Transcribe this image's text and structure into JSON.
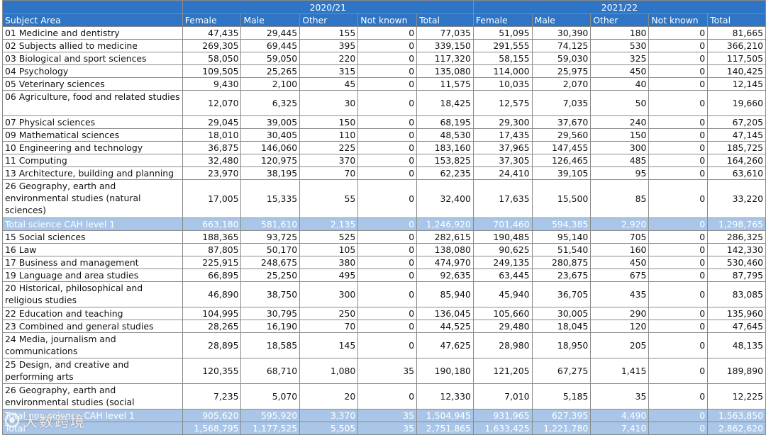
{
  "headers": {
    "subject_area": "Subject Area",
    "years": [
      "2020/21",
      "2021/22"
    ],
    "columns": [
      "Female",
      "Male",
      "Other",
      "Not known",
      "Total"
    ]
  },
  "rows": [
    {
      "subject": "01 Medicine and dentistry",
      "y1": [
        "47,435",
        "29,445",
        "155",
        "0",
        "77,035"
      ],
      "y2": [
        "51,095",
        "30,390",
        "180",
        "0",
        "81,665"
      ]
    },
    {
      "subject": "02 Subjects allied to medicine",
      "y1": [
        "269,305",
        "69,445",
        "395",
        "0",
        "339,150"
      ],
      "y2": [
        "291,555",
        "74,125",
        "530",
        "0",
        "366,210"
      ]
    },
    {
      "subject": "03 Biological and sport sciences",
      "y1": [
        "58,050",
        "59,050",
        "220",
        "0",
        "117,320"
      ],
      "y2": [
        "58,155",
        "59,030",
        "325",
        "0",
        "117,505"
      ]
    },
    {
      "subject": "04 Psychology",
      "y1": [
        "109,505",
        "25,265",
        "315",
        "0",
        "135,080"
      ],
      "y2": [
        "114,000",
        "25,975",
        "450",
        "0",
        "140,425"
      ]
    },
    {
      "subject": "05 Veterinary sciences",
      "y1": [
        "9,430",
        "2,100",
        "45",
        "0",
        "11,575"
      ],
      "y2": [
        "10,035",
        "2,070",
        "40",
        "0",
        "12,145"
      ]
    },
    {
      "subject": "06 Agriculture, food and related studies",
      "y1": [
        "12,070",
        "6,325",
        "30",
        "0",
        "18,425"
      ],
      "y2": [
        "12,575",
        "7,035",
        "50",
        "0",
        "19,660"
      ]
    },
    {
      "subject": "07 Physical sciences",
      "y1": [
        "29,045",
        "39,005",
        "150",
        "0",
        "68,195"
      ],
      "y2": [
        "29,300",
        "37,670",
        "240",
        "0",
        "67,205"
      ]
    },
    {
      "subject": "09 Mathematical sciences",
      "y1": [
        "18,010",
        "30,405",
        "110",
        "0",
        "48,530"
      ],
      "y2": [
        "17,435",
        "29,560",
        "150",
        "0",
        "47,145"
      ]
    },
    {
      "subject": "10 Engineering and technology",
      "y1": [
        "36,875",
        "146,060",
        "225",
        "0",
        "183,160"
      ],
      "y2": [
        "37,965",
        "147,455",
        "300",
        "0",
        "185,725"
      ]
    },
    {
      "subject": "11 Computing",
      "y1": [
        "32,480",
        "120,975",
        "370",
        "0",
        "153,825"
      ],
      "y2": [
        "37,305",
        "126,465",
        "485",
        "0",
        "164,260"
      ]
    },
    {
      "subject": "13 Architecture, building and planning",
      "y1": [
        "23,970",
        "38,195",
        "70",
        "0",
        "62,235"
      ],
      "y2": [
        "24,410",
        "39,105",
        "95",
        "0",
        "63,610"
      ]
    },
    {
      "subject": "26 Geography, earth and environmental studies (natural sciences)",
      "y1": [
        "17,005",
        "15,335",
        "55",
        "0",
        "32,400"
      ],
      "y2": [
        "17,635",
        "15,500",
        "85",
        "0",
        "33,220"
      ]
    },
    {
      "subject": "Total science CAH level 1",
      "total": true,
      "y1": [
        "663,180",
        "581,610",
        "2,135",
        "0",
        "1,246,920"
      ],
      "y2": [
        "701,460",
        "594,385",
        "2,920",
        "0",
        "1,298,765"
      ]
    },
    {
      "subject": "15 Social sciences",
      "y1": [
        "188,365",
        "93,725",
        "525",
        "0",
        "282,615"
      ],
      "y2": [
        "190,485",
        "95,140",
        "705",
        "0",
        "286,325"
      ]
    },
    {
      "subject": "16 Law",
      "y1": [
        "87,805",
        "50,170",
        "105",
        "0",
        "138,080"
      ],
      "y2": [
        "90,625",
        "51,540",
        "160",
        "0",
        "142,330"
      ]
    },
    {
      "subject": "17 Business and management",
      "y1": [
        "225,915",
        "248,675",
        "380",
        "0",
        "474,970"
      ],
      "y2": [
        "249,135",
        "280,875",
        "450",
        "0",
        "530,460"
      ]
    },
    {
      "subject": "19 Language and area studies",
      "y1": [
        "66,895",
        "25,250",
        "495",
        "0",
        "92,635"
      ],
      "y2": [
        "63,445",
        "23,675",
        "675",
        "0",
        "87,795"
      ]
    },
    {
      "subject": "20 Historical, philosophical and religious studies",
      "y1": [
        "46,890",
        "38,750",
        "300",
        "0",
        "85,940"
      ],
      "y2": [
        "45,940",
        "36,705",
        "435",
        "0",
        "83,085"
      ]
    },
    {
      "subject": "22 Education and teaching",
      "y1": [
        "104,995",
        "30,795",
        "250",
        "0",
        "136,045"
      ],
      "y2": [
        "105,660",
        "30,005",
        "290",
        "0",
        "135,960"
      ]
    },
    {
      "subject": "23 Combined and general studies",
      "y1": [
        "28,265",
        "16,190",
        "70",
        "0",
        "44,525"
      ],
      "y2": [
        "29,480",
        "18,045",
        "120",
        "0",
        "47,645"
      ]
    },
    {
      "subject": "24 Media, journalism and communications",
      "y1": [
        "28,895",
        "18,585",
        "145",
        "0",
        "47,625"
      ],
      "y2": [
        "28,980",
        "18,950",
        "205",
        "0",
        "48,135"
      ]
    },
    {
      "subject": "25 Design, and creative and performing arts",
      "y1": [
        "120,355",
        "68,710",
        "1,080",
        "35",
        "190,180"
      ],
      "y2": [
        "121,205",
        "67,275",
        "1,415",
        "0",
        "189,890"
      ]
    },
    {
      "subject": "26 Geography, earth and environmental studies (social",
      "y1": [
        "7,235",
        "5,070",
        "20",
        "0",
        "12,330"
      ],
      "y2": [
        "7,010",
        "5,185",
        "35",
        "0",
        "12,225"
      ]
    },
    {
      "subject": "Total non-science CAH level 1",
      "total": true,
      "y1": [
        "905,620",
        "595,920",
        "3,370",
        "35",
        "1,504,945"
      ],
      "y2": [
        "931,965",
        "627,395",
        "4,490",
        "0",
        "1,563,850"
      ]
    },
    {
      "subject": "Total",
      "total": true,
      "grand": true,
      "y1": [
        "1,568,795",
        "1,177,525",
        "5,505",
        "35",
        "2,751,865"
      ],
      "y2": [
        "1,633,425",
        "1,221,780",
        "7,410",
        "0",
        "2,862,620"
      ]
    }
  ],
  "watermark": {
    "text": "大数跨境",
    "icon": "brand-logo-icon"
  }
}
